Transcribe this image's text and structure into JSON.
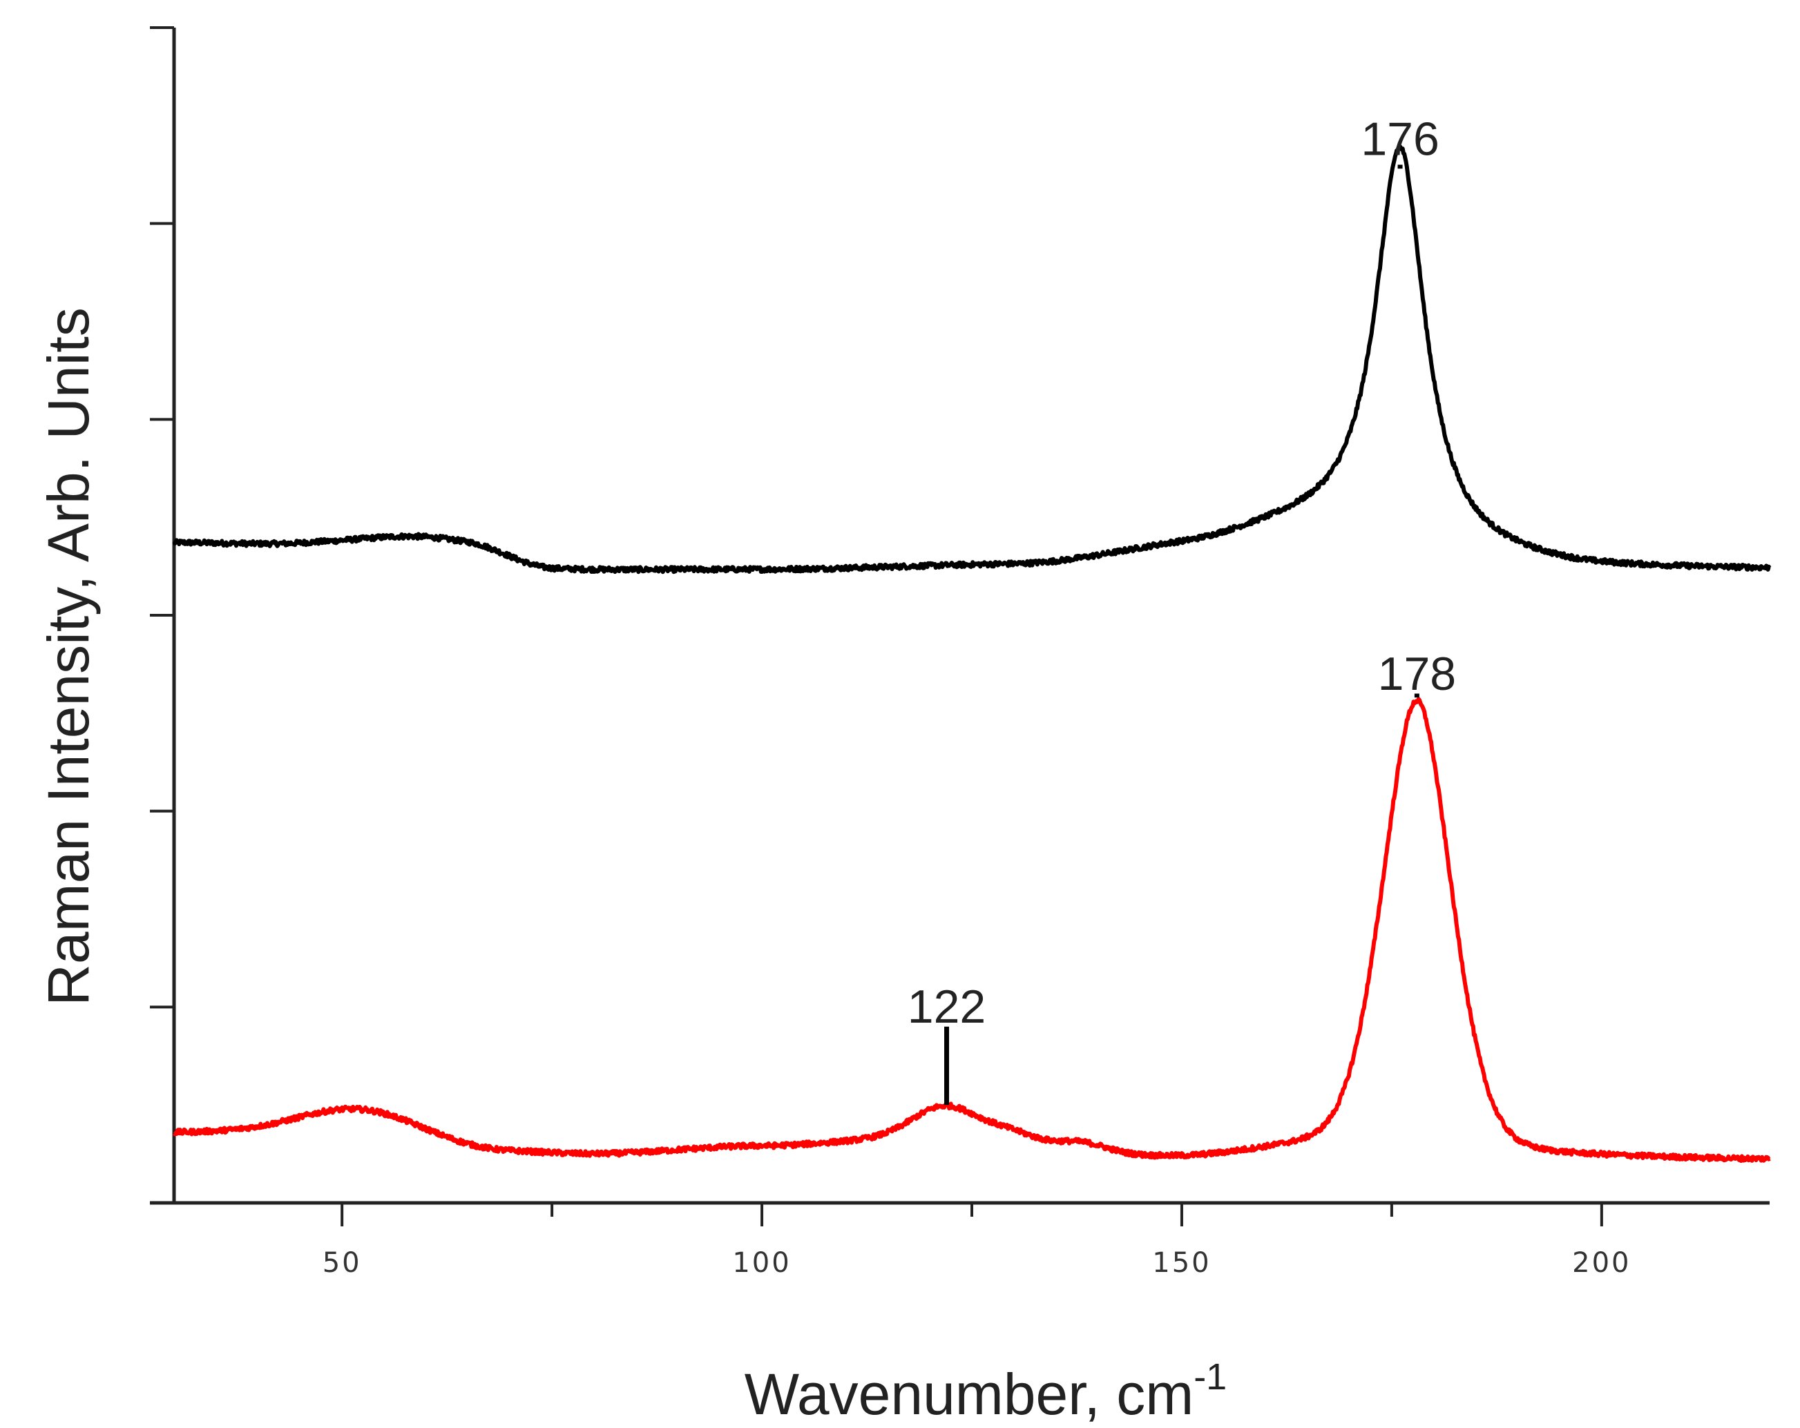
{
  "chart_data": {
    "type": "line",
    "title": "",
    "xlabel": "Wavenumber, cm",
    "xlabel_superscript": "-1",
    "ylabel": "Raman Intensity, Arb. Units",
    "xlim": [
      30,
      220
    ],
    "ylim": [
      0,
      6
    ],
    "x_ticks_major": [
      50,
      100,
      150,
      200
    ],
    "x_ticks_minor": [
      75,
      125,
      175
    ],
    "y_ticks": [
      1,
      2,
      3,
      4,
      5,
      6
    ],
    "y_tick_labels_shown": false,
    "grid": false,
    "legend": "none",
    "series": [
      {
        "color": "#000000",
        "baseline": 3.22,
        "peaks": [
          {
            "center": 60,
            "height": 0.08,
            "width": 7,
            "shape": "gauss"
          },
          {
            "center": 176,
            "height": 2.07,
            "width": 3.6,
            "shape": "lorentz"
          },
          {
            "center": 160,
            "height": 0.05,
            "width": 10,
            "shape": "gauss"
          }
        ],
        "background": [
          {
            "x": 30,
            "y": 3.37
          },
          {
            "x": 45,
            "y": 3.36
          },
          {
            "x": 65,
            "y": 3.31
          },
          {
            "x": 75,
            "y": 3.23
          },
          {
            "x": 100,
            "y": 3.23
          },
          {
            "x": 130,
            "y": 3.25
          },
          {
            "x": 150,
            "y": 3.31
          },
          {
            "x": 165,
            "y": 3.37
          },
          {
            "x": 185,
            "y": 3.26
          },
          {
            "x": 200,
            "y": 3.23
          },
          {
            "x": 220,
            "y": 3.23
          }
        ]
      },
      {
        "color": "#ff0000",
        "peaks": [
          {
            "center": 53,
            "height": 0.13,
            "width": 7,
            "shape": "gauss"
          },
          {
            "center": 122,
            "height": 0.18,
            "width": 4,
            "shape": "gauss"
          },
          {
            "center": 130,
            "height": 0.06,
            "width": 3,
            "shape": "gauss"
          },
          {
            "center": 138,
            "height": 0.05,
            "width": 3,
            "shape": "gauss"
          },
          {
            "center": 178,
            "height": 2.31,
            "width": 4.2,
            "shape": "mixed"
          }
        ],
        "background": [
          {
            "x": 30,
            "y": 0.36
          },
          {
            "x": 45,
            "y": 0.37
          },
          {
            "x": 70,
            "y": 0.26
          },
          {
            "x": 80,
            "y": 0.25
          },
          {
            "x": 100,
            "y": 0.29
          },
          {
            "x": 115,
            "y": 0.32
          },
          {
            "x": 150,
            "y": 0.23
          },
          {
            "x": 165,
            "y": 0.27
          },
          {
            "x": 195,
            "y": 0.23
          },
          {
            "x": 220,
            "y": 0.22
          }
        ]
      }
    ],
    "annotations": [
      {
        "text": "176",
        "x": 176,
        "y": 5.35,
        "marker_from": 5.3,
        "marker_to": 5.28
      },
      {
        "text": "178",
        "x": 178,
        "y": 2.62,
        "marker_from": 2.6,
        "marker_to": 2.58
      },
      {
        "text": "122",
        "x": 122,
        "y": 0.92,
        "marker_from": 0.9,
        "marker_to": 0.5
      }
    ]
  }
}
